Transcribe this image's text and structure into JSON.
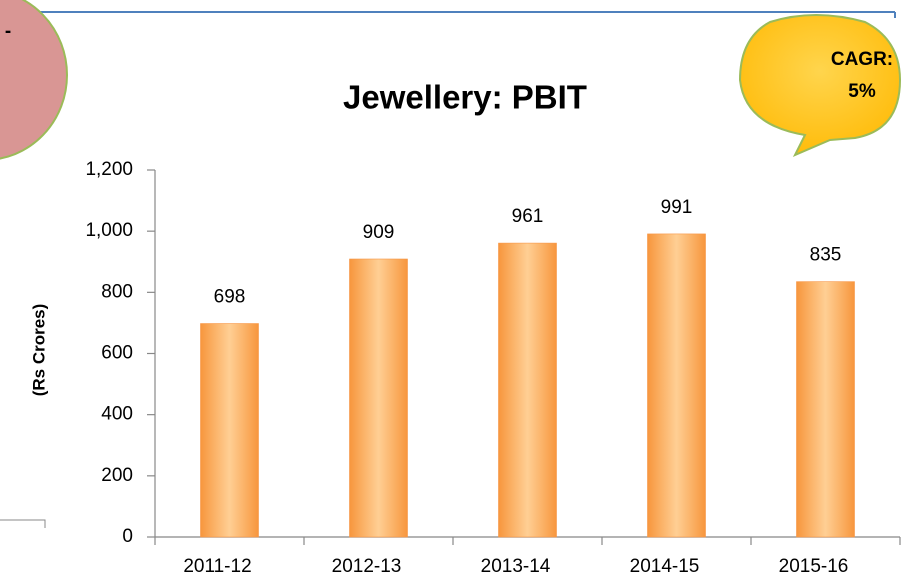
{
  "chart_data": {
    "type": "bar",
    "title": "Jewellery: PBIT",
    "y_label": "(Rs Crores)",
    "annotations": [
      "-",
      "CAGR:",
      "5%"
    ],
    "categories": [
      "2011-12",
      "2012-13",
      "2013-14",
      "2014-15",
      "2015-16"
    ],
    "values": [
      698,
      909,
      961,
      991,
      835
    ],
    "color": "#f79646",
    "ylim": [
      0,
      1200
    ],
    "yticks": [
      0,
      200,
      400,
      600,
      800,
      {
        "value": 1000,
        "label": "1,000"
      },
      {
        "value": 1200,
        "label": "1,200"
      }
    ],
    "grid": false
  }
}
